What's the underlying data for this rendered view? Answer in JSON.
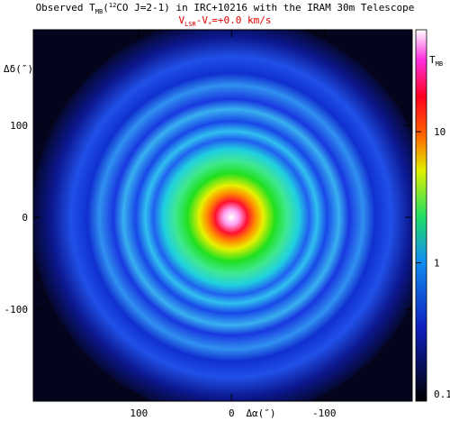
{
  "chart_data": {
    "type": "image",
    "title_parts": [
      "Observed T",
      "MB",
      "(",
      "12",
      "CO J=2-1) in IRC+10216 with the IRAM 30m Telescope"
    ],
    "subtitle_parts": [
      "V",
      "LSR",
      "-V",
      "*",
      "=+0.0 km/s"
    ],
    "xlabel": "Δα(″)",
    "ylabel": "Δδ(″)",
    "xlim": [
      214,
      -195
    ],
    "ylim": [
      -200,
      204
    ],
    "xticks": [
      100,
      0,
      -100
    ],
    "yticks": [
      -100,
      0,
      100
    ],
    "colorbar": {
      "label_parts": [
        "T",
        "MB"
      ],
      "lim": [
        0.088,
        60
      ],
      "ticks": [
        0.1,
        1,
        10
      ],
      "log": true
    }
  }
}
